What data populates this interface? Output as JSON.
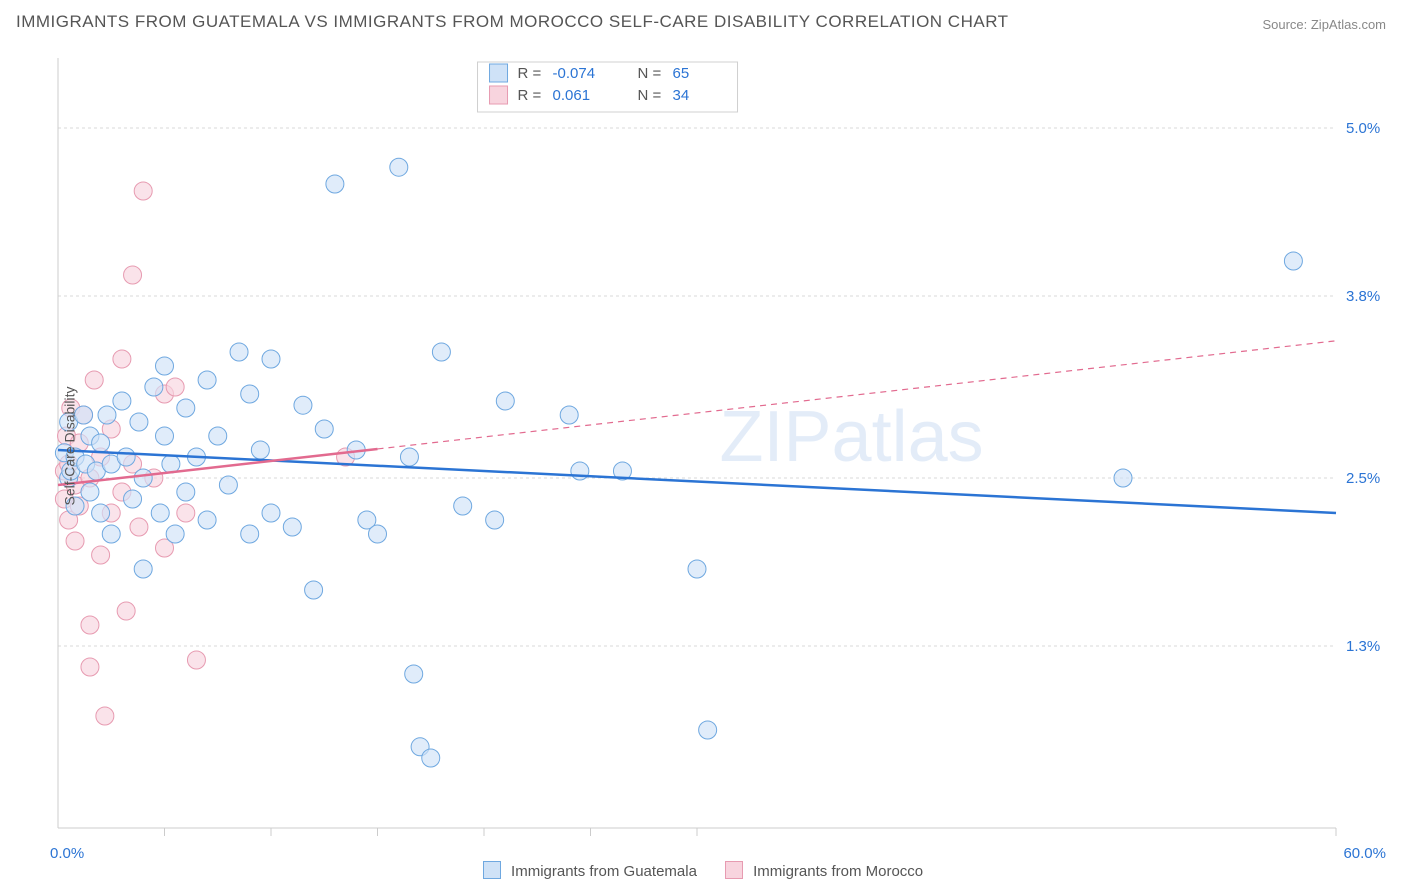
{
  "title": "IMMIGRANTS FROM GUATEMALA VS IMMIGRANTS FROM MOROCCO SELF-CARE DISABILITY CORRELATION CHART",
  "source": "Source: ZipAtlas.com",
  "watermark": "ZIPatlas",
  "ylabel": "Self-Care Disability",
  "chart": {
    "type": "scatter",
    "background_color": "#ffffff",
    "grid_color": "#d8d8d8",
    "axis_color": "#cccccc",
    "xlim": [
      0,
      60
    ],
    "ylim": [
      0,
      5.5
    ],
    "x_ticks": [
      5,
      10,
      15,
      20,
      25,
      30,
      60
    ],
    "y_gridlines": [
      1.3,
      2.5,
      3.8,
      5.0
    ],
    "y_tick_labels": [
      "1.3%",
      "2.5%",
      "3.8%",
      "5.0%"
    ],
    "x_first_label": "0.0%",
    "x_last_label": "60.0%",
    "x_label_color": "#2b74d4",
    "y_label_color": "#2b74d4",
    "marker_radius": 9,
    "marker_stroke_width": 1,
    "trend_line_width": 2.5,
    "trend_dash": "6,5",
    "series": [
      {
        "name": "Immigrants from Guatemala",
        "fill": "#cfe2f7",
        "stroke": "#6fa8e0",
        "trend_color": "#2b74d4",
        "r": "-0.074",
        "n": "65",
        "trend_solid_xrange": [
          0,
          60
        ],
        "trend_y_at_x0": 2.7,
        "trend_y_at_xmax": 2.25,
        "points": [
          [
            0.3,
            2.68
          ],
          [
            0.5,
            2.5
          ],
          [
            0.5,
            2.9
          ],
          [
            0.6,
            2.55
          ],
          [
            0.8,
            2.65
          ],
          [
            0.8,
            2.3
          ],
          [
            1.2,
            2.95
          ],
          [
            1.3,
            2.6
          ],
          [
            1.5,
            2.8
          ],
          [
            1.5,
            2.4
          ],
          [
            1.8,
            2.55
          ],
          [
            2.0,
            2.75
          ],
          [
            2.0,
            2.25
          ],
          [
            2.3,
            2.95
          ],
          [
            2.5,
            2.6
          ],
          [
            2.5,
            2.1
          ],
          [
            3.0,
            3.05
          ],
          [
            3.2,
            2.65
          ],
          [
            3.5,
            2.35
          ],
          [
            3.8,
            2.9
          ],
          [
            4.0,
            2.5
          ],
          [
            4.0,
            1.85
          ],
          [
            4.5,
            3.15
          ],
          [
            4.8,
            2.25
          ],
          [
            5.0,
            2.8
          ],
          [
            5.0,
            3.3
          ],
          [
            5.3,
            2.6
          ],
          [
            5.5,
            2.1
          ],
          [
            6.0,
            2.4
          ],
          [
            6.0,
            3.0
          ],
          [
            6.5,
            2.65
          ],
          [
            7.0,
            3.2
          ],
          [
            7.0,
            2.2
          ],
          [
            7.5,
            2.8
          ],
          [
            8.0,
            2.45
          ],
          [
            8.5,
            3.4
          ],
          [
            9.0,
            2.1
          ],
          [
            9.0,
            3.1
          ],
          [
            9.5,
            2.7
          ],
          [
            10.0,
            2.25
          ],
          [
            10.0,
            3.35
          ],
          [
            11.0,
            2.15
          ],
          [
            11.5,
            3.02
          ],
          [
            12.0,
            1.7
          ],
          [
            12.5,
            2.85
          ],
          [
            13.0,
            4.6
          ],
          [
            14.0,
            2.7
          ],
          [
            14.5,
            2.2
          ],
          [
            15.0,
            2.1
          ],
          [
            16.0,
            4.72
          ],
          [
            16.5,
            2.65
          ],
          [
            16.7,
            1.1
          ],
          [
            17.0,
            0.58
          ],
          [
            17.5,
            0.5
          ],
          [
            18.0,
            3.4
          ],
          [
            19.0,
            2.3
          ],
          [
            20.5,
            2.2
          ],
          [
            21.0,
            3.05
          ],
          [
            24.0,
            2.95
          ],
          [
            24.5,
            2.55
          ],
          [
            26.5,
            2.55
          ],
          [
            30.0,
            1.85
          ],
          [
            30.5,
            0.7
          ],
          [
            50.0,
            2.5
          ],
          [
            58.0,
            4.05
          ]
        ]
      },
      {
        "name": "Immigrants from Morocco",
        "fill": "#f8d4de",
        "stroke": "#e79bb1",
        "trend_color": "#e26a8f",
        "r": "0.061",
        "n": "34",
        "trend_solid_xrange": [
          0,
          15
        ],
        "trend_y_at_x0": 2.45,
        "trend_y_at_xmax": 3.48,
        "points": [
          [
            0.3,
            2.55
          ],
          [
            0.3,
            2.35
          ],
          [
            0.4,
            2.8
          ],
          [
            0.5,
            2.6
          ],
          [
            0.5,
            2.2
          ],
          [
            0.6,
            3.0
          ],
          [
            0.8,
            2.45
          ],
          [
            0.8,
            2.05
          ],
          [
            1.0,
            2.75
          ],
          [
            1.0,
            2.3
          ],
          [
            1.2,
            2.95
          ],
          [
            1.5,
            2.5
          ],
          [
            1.5,
            1.45
          ],
          [
            1.5,
            1.15
          ],
          [
            1.7,
            3.2
          ],
          [
            2.0,
            2.65
          ],
          [
            2.0,
            1.95
          ],
          [
            2.2,
            0.8
          ],
          [
            2.5,
            2.85
          ],
          [
            2.5,
            2.25
          ],
          [
            3.0,
            2.4
          ],
          [
            3.0,
            3.35
          ],
          [
            3.2,
            1.55
          ],
          [
            3.5,
            2.6
          ],
          [
            3.5,
            3.95
          ],
          [
            3.8,
            2.15
          ],
          [
            4.0,
            4.55
          ],
          [
            4.5,
            2.5
          ],
          [
            5.0,
            3.1
          ],
          [
            5.0,
            2.0
          ],
          [
            5.5,
            3.15
          ],
          [
            6.0,
            2.25
          ],
          [
            6.5,
            1.2
          ],
          [
            13.5,
            2.65
          ]
        ]
      }
    ]
  },
  "top_legend": {
    "r_label": "R =",
    "n_label": "N =",
    "text_color": "#555555",
    "value_color": "#2b74d4",
    "border_color": "#d0d0d0",
    "fontsize": 15
  },
  "bottom_legend_fontsize": 15
}
